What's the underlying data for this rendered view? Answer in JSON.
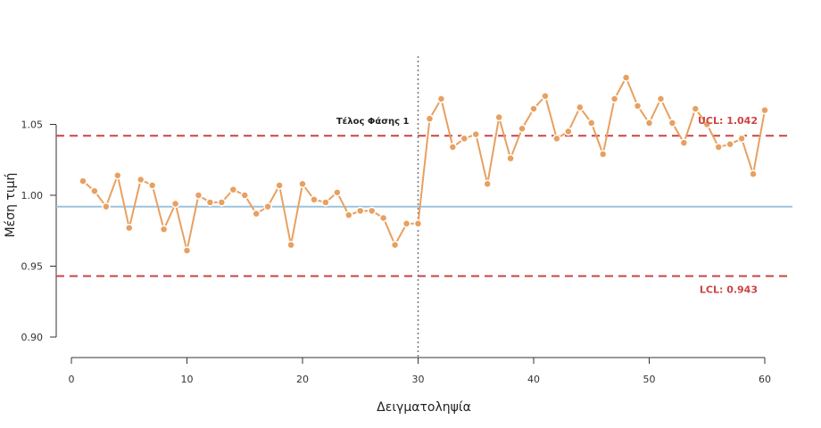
{
  "chart_data": {
    "type": "line",
    "xlabel": "Δειγματοληψία",
    "ylabel": "Μέση τιμή",
    "xlim": [
      0,
      60
    ],
    "ylim": [
      0.9,
      1.09
    ],
    "x_ticks": [
      0,
      10,
      20,
      30,
      40,
      50,
      60
    ],
    "y_ticks": [
      0.9,
      0.95,
      1.0,
      1.05
    ],
    "x_tick_labels": [
      "0",
      "10",
      "20",
      "30",
      "40",
      "50",
      "60"
    ],
    "y_tick_labels": [
      "0.90",
      "0.95",
      "1.00",
      "1.05"
    ],
    "grid": false,
    "series": [
      {
        "x": [
          1,
          2,
          3,
          4,
          5,
          6,
          7,
          8,
          9,
          10,
          11,
          12,
          13,
          14,
          15,
          16,
          17,
          18,
          19,
          20,
          21,
          22,
          23,
          24,
          25,
          26,
          27,
          28,
          29,
          30,
          31,
          32,
          33,
          34,
          35,
          36,
          37,
          38,
          39,
          40,
          41,
          42,
          43,
          44,
          45,
          46,
          47,
          48,
          49,
          50,
          51,
          52,
          53,
          54,
          55,
          56,
          57,
          58,
          59,
          60
        ],
        "values": [
          1.01,
          1.003,
          0.992,
          1.014,
          0.977,
          1.011,
          1.007,
          0.976,
          0.994,
          0.961,
          1.0,
          0.995,
          0.995,
          1.004,
          1.0,
          0.987,
          0.992,
          1.007,
          0.965,
          1.008,
          0.997,
          0.995,
          1.002,
          0.986,
          0.989,
          0.989,
          0.984,
          0.965,
          0.98,
          0.98,
          1.054,
          1.068,
          1.034,
          1.04,
          1.043,
          1.008,
          1.055,
          1.026,
          1.047,
          1.061,
          1.07,
          1.04,
          1.045,
          1.062,
          1.051,
          1.029,
          1.068,
          1.083,
          1.063,
          1.051,
          1.068,
          1.051,
          1.037,
          1.061,
          1.05,
          1.034,
          1.036,
          1.04,
          1.015,
          1.06
        ],
        "color": "#E8A060"
      }
    ],
    "center_line": {
      "value": 0.992,
      "color": "#9DC3DC"
    },
    "ucl": {
      "value": 1.042,
      "label": "UCL: 1.042",
      "color": "#CC4444"
    },
    "lcl": {
      "value": 0.943,
      "label": "LCL: 0.943",
      "color": "#CC4444"
    },
    "phase_marker": {
      "x": 30,
      "label": "Τέλος Φάσης 1",
      "color": "#777777"
    }
  }
}
